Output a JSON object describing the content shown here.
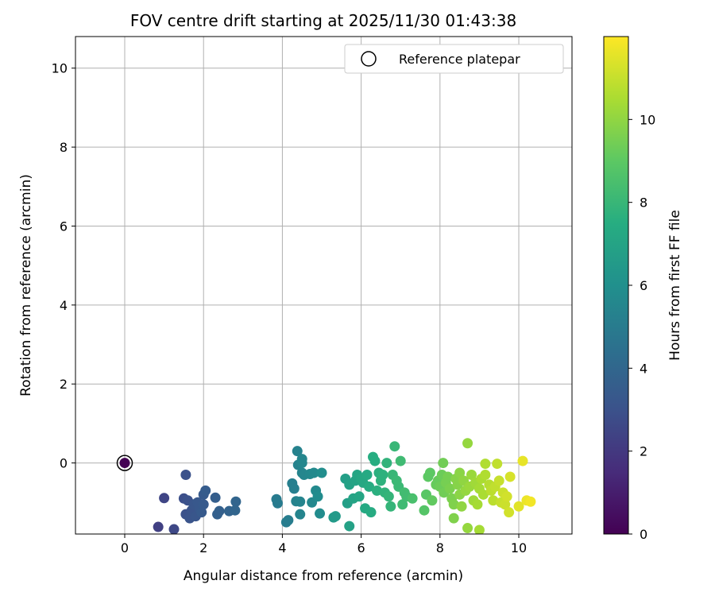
{
  "chart_data": {
    "type": "scatter",
    "title": "FOV centre drift starting at 2025/11/30 01:43:38",
    "xlabel": "Angular distance from reference (arcmin)",
    "ylabel": "Rotation from reference (arcmin)",
    "xlim": [
      -1.25,
      11.35
    ],
    "ylim": [
      -1.8,
      10.8
    ],
    "xticks": [
      0,
      2,
      4,
      6,
      8,
      10
    ],
    "yticks": [
      0,
      2,
      4,
      6,
      8,
      10
    ],
    "grid": true,
    "legend": {
      "position": "top-right",
      "entries": [
        "Reference platepar"
      ]
    },
    "reference_point": {
      "x": 0,
      "y": 0,
      "color_value": 0
    },
    "colorbar": {
      "label": "Hours from first FF file",
      "min": 0,
      "max": 12,
      "ticks": [
        0,
        2,
        4,
        6,
        8,
        10
      ],
      "colormap": "viridis"
    },
    "series": [
      {
        "points": [
          {
            "x": 0.85,
            "y": -1.62,
            "c": 2.3
          },
          {
            "x": 1.0,
            "y": -0.89,
            "c": 2.5
          },
          {
            "x": 1.25,
            "y": -1.68,
            "c": 2.6
          },
          {
            "x": 1.5,
            "y": -0.9,
            "c": 2.9
          },
          {
            "x": 1.55,
            "y": -0.3,
            "c": 3.0
          },
          {
            "x": 1.55,
            "y": -1.3,
            "c": 3.0
          },
          {
            "x": 1.6,
            "y": -0.95,
            "c": 3.0
          },
          {
            "x": 1.65,
            "y": -1.4,
            "c": 3.1
          },
          {
            "x": 1.7,
            "y": -1.2,
            "c": 3.1
          },
          {
            "x": 1.75,
            "y": -1.05,
            "c": 3.2
          },
          {
            "x": 1.8,
            "y": -1.35,
            "c": 3.2
          },
          {
            "x": 1.85,
            "y": -1.0,
            "c": 3.3
          },
          {
            "x": 1.9,
            "y": -1.15,
            "c": 3.3
          },
          {
            "x": 1.95,
            "y": -1.25,
            "c": 3.4
          },
          {
            "x": 2.0,
            "y": -0.8,
            "c": 3.4
          },
          {
            "x": 2.05,
            "y": -0.7,
            "c": 3.5
          },
          {
            "x": 2.0,
            "y": -1.05,
            "c": 3.4
          },
          {
            "x": 2.3,
            "y": -0.88,
            "c": 3.6
          },
          {
            "x": 2.35,
            "y": -1.3,
            "c": 3.7
          },
          {
            "x": 2.4,
            "y": -1.22,
            "c": 3.7
          },
          {
            "x": 2.65,
            "y": -1.22,
            "c": 3.8
          },
          {
            "x": 2.8,
            "y": -1.2,
            "c": 3.9
          },
          {
            "x": 2.82,
            "y": -0.98,
            "c": 3.9
          },
          {
            "x": 3.85,
            "y": -0.92,
            "c": 5.0
          },
          {
            "x": 3.88,
            "y": -1.02,
            "c": 5.0
          },
          {
            "x": 4.1,
            "y": -1.5,
            "c": 5.1
          },
          {
            "x": 4.15,
            "y": -1.45,
            "c": 5.1
          },
          {
            "x": 4.25,
            "y": -0.52,
            "c": 5.2
          },
          {
            "x": 4.3,
            "y": -0.65,
            "c": 5.2
          },
          {
            "x": 4.35,
            "y": -0.97,
            "c": 5.3
          },
          {
            "x": 4.38,
            "y": 0.3,
            "c": 5.3
          },
          {
            "x": 4.4,
            "y": -0.05,
            "c": 5.3
          },
          {
            "x": 4.45,
            "y": -0.98,
            "c": 5.4
          },
          {
            "x": 4.45,
            "y": -1.3,
            "c": 5.4
          },
          {
            "x": 4.5,
            "y": -0.25,
            "c": 5.4
          },
          {
            "x": 4.5,
            "y": 0.1,
            "c": 5.5
          },
          {
            "x": 4.5,
            "y": 0.0,
            "c": 5.5
          },
          {
            "x": 4.55,
            "y": -0.3,
            "c": 5.5
          },
          {
            "x": 4.7,
            "y": -0.28,
            "c": 5.6
          },
          {
            "x": 4.75,
            "y": -1.0,
            "c": 5.6
          },
          {
            "x": 4.8,
            "y": -0.25,
            "c": 5.7
          },
          {
            "x": 4.85,
            "y": -0.7,
            "c": 5.7
          },
          {
            "x": 4.9,
            "y": -0.85,
            "c": 5.8
          },
          {
            "x": 4.95,
            "y": -1.28,
            "c": 5.8
          },
          {
            "x": 5.0,
            "y": -0.25,
            "c": 5.9
          },
          {
            "x": 5.3,
            "y": -1.38,
            "c": 6.5
          },
          {
            "x": 5.35,
            "y": -1.35,
            "c": 6.5
          },
          {
            "x": 5.6,
            "y": -0.4,
            "c": 6.8
          },
          {
            "x": 5.65,
            "y": -1.02,
            "c": 6.8
          },
          {
            "x": 5.7,
            "y": -1.6,
            "c": 6.9
          },
          {
            "x": 5.7,
            "y": -0.55,
            "c": 6.9
          },
          {
            "x": 5.8,
            "y": -0.9,
            "c": 7.0
          },
          {
            "x": 5.85,
            "y": -0.45,
            "c": 7.0
          },
          {
            "x": 5.9,
            "y": -0.3,
            "c": 7.1
          },
          {
            "x": 5.95,
            "y": -0.85,
            "c": 7.1
          },
          {
            "x": 6.0,
            "y": -0.4,
            "c": 7.2
          },
          {
            "x": 6.05,
            "y": -0.5,
            "c": 7.2
          },
          {
            "x": 6.1,
            "y": -1.15,
            "c": 7.3
          },
          {
            "x": 6.15,
            "y": -0.3,
            "c": 7.3
          },
          {
            "x": 6.2,
            "y": -0.6,
            "c": 7.4
          },
          {
            "x": 6.25,
            "y": -1.25,
            "c": 7.4
          },
          {
            "x": 6.3,
            "y": 0.15,
            "c": 7.5
          },
          {
            "x": 6.35,
            "y": 0.05,
            "c": 7.5
          },
          {
            "x": 6.4,
            "y": -0.7,
            "c": 7.6
          },
          {
            "x": 6.45,
            "y": -0.25,
            "c": 7.6
          },
          {
            "x": 6.5,
            "y": -0.45,
            "c": 7.7
          },
          {
            "x": 6.55,
            "y": -0.3,
            "c": 7.7
          },
          {
            "x": 6.6,
            "y": -0.75,
            "c": 7.8
          },
          {
            "x": 6.65,
            "y": 0.0,
            "c": 7.8
          },
          {
            "x": 6.7,
            "y": -0.85,
            "c": 7.9
          },
          {
            "x": 6.75,
            "y": -1.1,
            "c": 7.9
          },
          {
            "x": 6.8,
            "y": -0.3,
            "c": 8.0
          },
          {
            "x": 6.85,
            "y": 0.42,
            "c": 8.0
          },
          {
            "x": 6.9,
            "y": -0.45,
            "c": 8.1
          },
          {
            "x": 6.95,
            "y": -0.6,
            "c": 8.1
          },
          {
            "x": 7.0,
            "y": 0.05,
            "c": 8.2
          },
          {
            "x": 7.05,
            "y": -1.05,
            "c": 8.2
          },
          {
            "x": 7.1,
            "y": -0.75,
            "c": 8.3
          },
          {
            "x": 7.15,
            "y": -0.85,
            "c": 8.3
          },
          {
            "x": 7.3,
            "y": -0.9,
            "c": 8.5
          },
          {
            "x": 7.6,
            "y": -1.2,
            "c": 8.8
          },
          {
            "x": 7.65,
            "y": -0.8,
            "c": 8.9
          },
          {
            "x": 7.7,
            "y": -0.35,
            "c": 9.0
          },
          {
            "x": 7.75,
            "y": -0.25,
            "c": 9.0
          },
          {
            "x": 7.8,
            "y": -0.95,
            "c": 9.1
          },
          {
            "x": 7.9,
            "y": -0.55,
            "c": 9.2
          },
          {
            "x": 7.95,
            "y": -0.45,
            "c": 9.2
          },
          {
            "x": 8.0,
            "y": -0.6,
            "c": 9.3
          },
          {
            "x": 8.05,
            "y": -0.3,
            "c": 9.3
          },
          {
            "x": 8.08,
            "y": 0.0,
            "c": 9.4
          },
          {
            "x": 8.1,
            "y": -0.75,
            "c": 9.4
          },
          {
            "x": 8.15,
            "y": -0.5,
            "c": 9.5
          },
          {
            "x": 8.2,
            "y": -0.35,
            "c": 9.5
          },
          {
            "x": 8.25,
            "y": -0.65,
            "c": 9.6
          },
          {
            "x": 8.3,
            "y": -0.9,
            "c": 9.6
          },
          {
            "x": 8.35,
            "y": -1.05,
            "c": 9.7
          },
          {
            "x": 8.35,
            "y": -1.4,
            "c": 9.7
          },
          {
            "x": 8.4,
            "y": -0.4,
            "c": 9.8
          },
          {
            "x": 8.45,
            "y": -0.55,
            "c": 9.8
          },
          {
            "x": 8.5,
            "y": -0.8,
            "c": 9.9
          },
          {
            "x": 8.5,
            "y": -0.25,
            "c": 9.9
          },
          {
            "x": 8.55,
            "y": -1.1,
            "c": 10.0
          },
          {
            "x": 8.6,
            "y": -0.45,
            "c": 10.0
          },
          {
            "x": 8.65,
            "y": -0.7,
            "c": 10.1
          },
          {
            "x": 8.7,
            "y": 0.5,
            "c": 10.1
          },
          {
            "x": 8.7,
            "y": -1.65,
            "c": 10.1
          },
          {
            "x": 8.75,
            "y": -0.6,
            "c": 10.2
          },
          {
            "x": 8.8,
            "y": -0.3,
            "c": 10.2
          },
          {
            "x": 8.85,
            "y": -0.95,
            "c": 10.3
          },
          {
            "x": 8.9,
            "y": -0.5,
            "c": 10.3
          },
          {
            "x": 8.95,
            "y": -1.05,
            "c": 10.4
          },
          {
            "x": 9.0,
            "y": -1.7,
            "c": 10.4
          },
          {
            "x": 9.0,
            "y": -0.65,
            "c": 10.4
          },
          {
            "x": 9.05,
            "y": -0.4,
            "c": 10.5
          },
          {
            "x": 9.1,
            "y": -0.8,
            "c": 10.5
          },
          {
            "x": 9.15,
            "y": -0.3,
            "c": 10.6
          },
          {
            "x": 9.15,
            "y": -0.02,
            "c": 10.6
          },
          {
            "x": 9.25,
            "y": -0.55,
            "c": 10.7
          },
          {
            "x": 9.3,
            "y": -0.7,
            "c": 10.8
          },
          {
            "x": 9.35,
            "y": -0.95,
            "c": 10.8
          },
          {
            "x": 9.4,
            "y": -0.6,
            "c": 10.9
          },
          {
            "x": 9.45,
            "y": -0.02,
            "c": 10.9
          },
          {
            "x": 9.5,
            "y": -0.45,
            "c": 11.0
          },
          {
            "x": 9.55,
            "y": -1.0,
            "c": 11.0
          },
          {
            "x": 9.6,
            "y": -0.75,
            "c": 11.1
          },
          {
            "x": 9.65,
            "y": -1.05,
            "c": 11.1
          },
          {
            "x": 9.7,
            "y": -0.85,
            "c": 11.2
          },
          {
            "x": 9.75,
            "y": -1.25,
            "c": 11.2
          },
          {
            "x": 9.78,
            "y": -0.35,
            "c": 11.3
          },
          {
            "x": 10.0,
            "y": -1.1,
            "c": 11.5
          },
          {
            "x": 10.1,
            "y": 0.05,
            "c": 11.6
          },
          {
            "x": 10.2,
            "y": -0.95,
            "c": 11.7
          },
          {
            "x": 10.3,
            "y": -0.98,
            "c": 11.8
          }
        ]
      }
    ]
  }
}
